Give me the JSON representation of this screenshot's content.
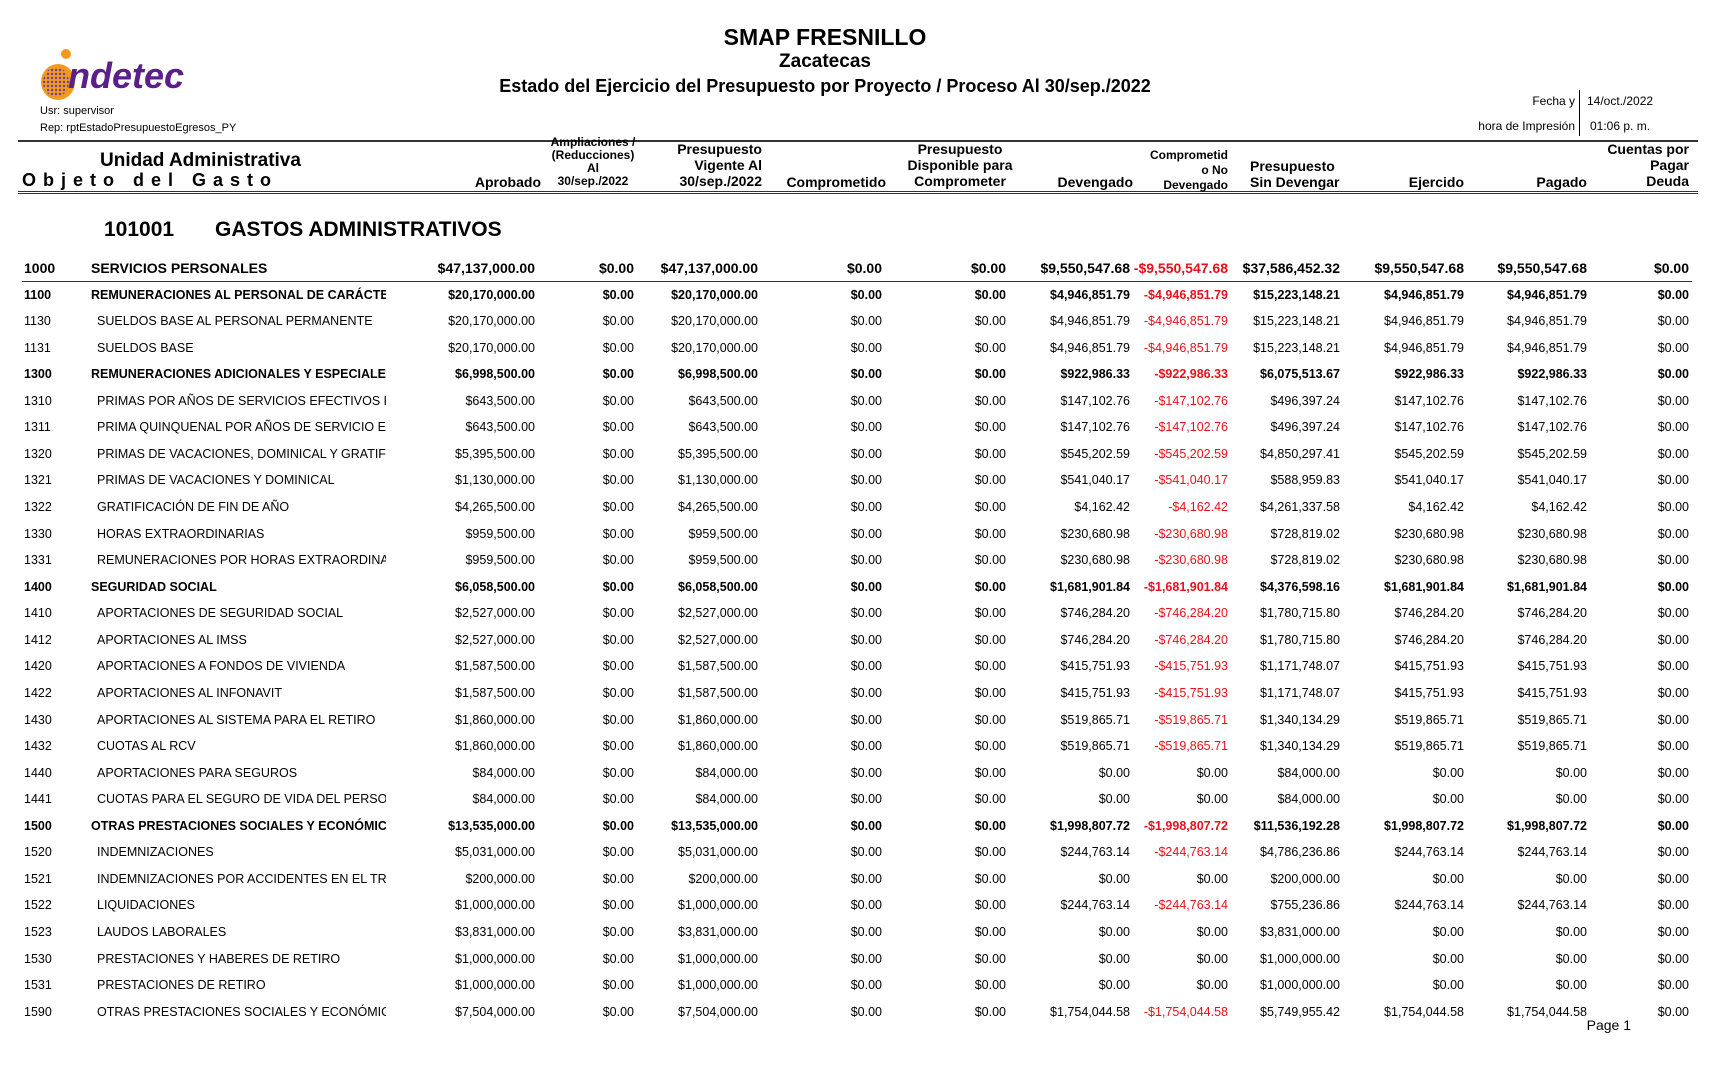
{
  "report": {
    "title": "SMAP FRESNILLO",
    "subtitle": "Zacatecas",
    "heading": "Estado del Ejercicio del Presupuesto por Proyecto / Proceso Al 30/sep./2022",
    "user": "Usr: supervisor",
    "rep": "Rep: rptEstadoPresupuestoEgresos_PY",
    "fecha_label": "Fecha y",
    "fecha_value": "14/oct./2022",
    "hora_label": "hora de Impresión",
    "hora_value": "01:06 p. m.",
    "logo_text": "indetec",
    "page": "Page 1"
  },
  "colors": {
    "negative": "#e8101c",
    "logo_purple": "#5b1f8a",
    "logo_orange": "#f39a1e"
  },
  "columns": {
    "unidad": "Unidad Administrativa",
    "objeto": "O b j e t o   d e l   G a s t o",
    "aprobado": "Aprobado",
    "ampliaciones": [
      "Ampliaciones /",
      "(Reducciones)",
      "Al",
      "30/sep./2022"
    ],
    "vigente": [
      "Presupuesto",
      "Vigente Al",
      "30/sep./2022"
    ],
    "comprometido": "Comprometido",
    "disponible": [
      "Presupuesto",
      "Disponible para",
      "Comprometer"
    ],
    "devengado": "Devengado",
    "no_devengado": [
      "Comprometid",
      "o No",
      "Devengado"
    ],
    "sin_devengar": [
      "Presupuesto",
      "Sin Devengar"
    ],
    "ejercido": "Ejercido",
    "pagado": "Pagado",
    "cuentas": [
      "Cuentas por",
      "Pagar",
      "Deuda"
    ]
  },
  "section": {
    "code": "101001",
    "name": "GASTOS ADMINISTRATIVOS"
  },
  "rows": [
    {
      "code": "1000",
      "name": "SERVICIOS PERSONALES",
      "bold": true,
      "values": [
        "$47,137,000.00",
        "$0.00",
        "$47,137,000.00",
        "$0.00",
        "$0.00",
        "$9,550,547.68",
        "-$9,550,547.68",
        "$37,586,452.32",
        "$9,550,547.68",
        "$9,550,547.68",
        "$0.00"
      ]
    },
    {
      "code": "1100",
      "name": "REMUNERACIONES AL PERSONAL DE CARÁCTER PE",
      "bold": true,
      "values": [
        "$20,170,000.00",
        "$0.00",
        "$20,170,000.00",
        "$0.00",
        "$0.00",
        "$4,946,851.79",
        "-$4,946,851.79",
        "$15,223,148.21",
        "$4,946,851.79",
        "$4,946,851.79",
        "$0.00"
      ]
    },
    {
      "code": "1130",
      "name": "SUELDOS BASE AL PERSONAL PERMANENTE",
      "bold": false,
      "values": [
        "$20,170,000.00",
        "$0.00",
        "$20,170,000.00",
        "$0.00",
        "$0.00",
        "$4,946,851.79",
        "-$4,946,851.79",
        "$15,223,148.21",
        "$4,946,851.79",
        "$4,946,851.79",
        "$0.00"
      ]
    },
    {
      "code": "1131",
      "name": "SUELDOS BASE",
      "bold": false,
      "values": [
        "$20,170,000.00",
        "$0.00",
        "$20,170,000.00",
        "$0.00",
        "$0.00",
        "$4,946,851.79",
        "-$4,946,851.79",
        "$15,223,148.21",
        "$4,946,851.79",
        "$4,946,851.79",
        "$0.00"
      ]
    },
    {
      "code": "1300",
      "name": "REMUNERACIONES ADICIONALES Y ESPECIALES",
      "bold": true,
      "values": [
        "$6,998,500.00",
        "$0.00",
        "$6,998,500.00",
        "$0.00",
        "$0.00",
        "$922,986.33",
        "-$922,986.33",
        "$6,075,513.67",
        "$922,986.33",
        "$922,986.33",
        "$0.00"
      ]
    },
    {
      "code": "1310",
      "name": "PRIMAS POR AÑOS DE SERVICIOS EFECTIVOS PRES",
      "bold": false,
      "values": [
        "$643,500.00",
        "$0.00",
        "$643,500.00",
        "$0.00",
        "$0.00",
        "$147,102.76",
        "-$147,102.76",
        "$496,397.24",
        "$147,102.76",
        "$147,102.76",
        "$0.00"
      ]
    },
    {
      "code": "1311",
      "name": "PRIMA QUINQUENAL POR AÑOS DE SERVICIO EFECT",
      "bold": false,
      "values": [
        "$643,500.00",
        "$0.00",
        "$643,500.00",
        "$0.00",
        "$0.00",
        "$147,102.76",
        "-$147,102.76",
        "$496,397.24",
        "$147,102.76",
        "$147,102.76",
        "$0.00"
      ]
    },
    {
      "code": "1320",
      "name": "PRIMAS DE VACACIONES, DOMINICAL Y GRATIFICAC",
      "bold": false,
      "values": [
        "$5,395,500.00",
        "$0.00",
        "$5,395,500.00",
        "$0.00",
        "$0.00",
        "$545,202.59",
        "-$545,202.59",
        "$4,850,297.41",
        "$545,202.59",
        "$545,202.59",
        "$0.00"
      ]
    },
    {
      "code": "1321",
      "name": "PRIMAS DE VACACIONES Y DOMINICAL",
      "bold": false,
      "values": [
        "$1,130,000.00",
        "$0.00",
        "$1,130,000.00",
        "$0.00",
        "$0.00",
        "$541,040.17",
        "-$541,040.17",
        "$588,959.83",
        "$541,040.17",
        "$541,040.17",
        "$0.00"
      ]
    },
    {
      "code": "1322",
      "name": "GRATIFICACIÓN DE FIN DE AÑO",
      "bold": false,
      "values": [
        "$4,265,500.00",
        "$0.00",
        "$4,265,500.00",
        "$0.00",
        "$0.00",
        "$4,162.42",
        "-$4,162.42",
        "$4,261,337.58",
        "$4,162.42",
        "$4,162.42",
        "$0.00"
      ]
    },
    {
      "code": "1330",
      "name": "HORAS EXTRAORDINARIAS",
      "bold": false,
      "values": [
        "$959,500.00",
        "$0.00",
        "$959,500.00",
        "$0.00",
        "$0.00",
        "$230,680.98",
        "-$230,680.98",
        "$728,819.02",
        "$230,680.98",
        "$230,680.98",
        "$0.00"
      ]
    },
    {
      "code": "1331",
      "name": "REMUNERACIONES POR  HORAS EXTRAORDINARIAS",
      "bold": false,
      "values": [
        "$959,500.00",
        "$0.00",
        "$959,500.00",
        "$0.00",
        "$0.00",
        "$230,680.98",
        "-$230,680.98",
        "$728,819.02",
        "$230,680.98",
        "$230,680.98",
        "$0.00"
      ]
    },
    {
      "code": "1400",
      "name": "SEGURIDAD SOCIAL",
      "bold": true,
      "values": [
        "$6,058,500.00",
        "$0.00",
        "$6,058,500.00",
        "$0.00",
        "$0.00",
        "$1,681,901.84",
        "-$1,681,901.84",
        "$4,376,598.16",
        "$1,681,901.84",
        "$1,681,901.84",
        "$0.00"
      ]
    },
    {
      "code": "1410",
      "name": "APORTACIONES DE SEGURIDAD SOCIAL",
      "bold": false,
      "values": [
        "$2,527,000.00",
        "$0.00",
        "$2,527,000.00",
        "$0.00",
        "$0.00",
        "$746,284.20",
        "-$746,284.20",
        "$1,780,715.80",
        "$746,284.20",
        "$746,284.20",
        "$0.00"
      ]
    },
    {
      "code": "1412",
      "name": "APORTACIONES AL IMSS",
      "bold": false,
      "values": [
        "$2,527,000.00",
        "$0.00",
        "$2,527,000.00",
        "$0.00",
        "$0.00",
        "$746,284.20",
        "-$746,284.20",
        "$1,780,715.80",
        "$746,284.20",
        "$746,284.20",
        "$0.00"
      ]
    },
    {
      "code": "1420",
      "name": "APORTACIONES A FONDOS DE VIVIENDA",
      "bold": false,
      "values": [
        "$1,587,500.00",
        "$0.00",
        "$1,587,500.00",
        "$0.00",
        "$0.00",
        "$415,751.93",
        "-$415,751.93",
        "$1,171,748.07",
        "$415,751.93",
        "$415,751.93",
        "$0.00"
      ]
    },
    {
      "code": "1422",
      "name": "APORTACIONES AL INFONAVIT",
      "bold": false,
      "values": [
        "$1,587,500.00",
        "$0.00",
        "$1,587,500.00",
        "$0.00",
        "$0.00",
        "$415,751.93",
        "-$415,751.93",
        "$1,171,748.07",
        "$415,751.93",
        "$415,751.93",
        "$0.00"
      ]
    },
    {
      "code": "1430",
      "name": "APORTACIONES AL SISTEMA PARA EL RETIRO",
      "bold": false,
      "values": [
        "$1,860,000.00",
        "$0.00",
        "$1,860,000.00",
        "$0.00",
        "$0.00",
        "$519,865.71",
        "-$519,865.71",
        "$1,340,134.29",
        "$519,865.71",
        "$519,865.71",
        "$0.00"
      ]
    },
    {
      "code": "1432",
      "name": "CUOTAS AL RCV",
      "bold": false,
      "values": [
        "$1,860,000.00",
        "$0.00",
        "$1,860,000.00",
        "$0.00",
        "$0.00",
        "$519,865.71",
        "-$519,865.71",
        "$1,340,134.29",
        "$519,865.71",
        "$519,865.71",
        "$0.00"
      ]
    },
    {
      "code": "1440",
      "name": "APORTACIONES PARA SEGUROS",
      "bold": false,
      "values": [
        "$84,000.00",
        "$0.00",
        "$84,000.00",
        "$0.00",
        "$0.00",
        "$0.00",
        "$0.00",
        "$84,000.00",
        "$0.00",
        "$0.00",
        "$0.00"
      ]
    },
    {
      "code": "1441",
      "name": "CUOTAS PARA EL SEGURO DE VIDA DEL PERSONAL",
      "bold": false,
      "values": [
        "$84,000.00",
        "$0.00",
        "$84,000.00",
        "$0.00",
        "$0.00",
        "$0.00",
        "$0.00",
        "$84,000.00",
        "$0.00",
        "$0.00",
        "$0.00"
      ]
    },
    {
      "code": "1500",
      "name": "OTRAS PRESTACIONES SOCIALES Y ECONÓMICAS",
      "bold": true,
      "values": [
        "$13,535,000.00",
        "$0.00",
        "$13,535,000.00",
        "$0.00",
        "$0.00",
        "$1,998,807.72",
        "-$1,998,807.72",
        "$11,536,192.28",
        "$1,998,807.72",
        "$1,998,807.72",
        "$0.00"
      ]
    },
    {
      "code": "1520",
      "name": "INDEMNIZACIONES",
      "bold": false,
      "values": [
        "$5,031,000.00",
        "$0.00",
        "$5,031,000.00",
        "$0.00",
        "$0.00",
        "$244,763.14",
        "-$244,763.14",
        "$4,786,236.86",
        "$244,763.14",
        "$244,763.14",
        "$0.00"
      ]
    },
    {
      "code": "1521",
      "name": "INDEMNIZACIONES POR ACCIDENTES EN EL TRABA.",
      "bold": false,
      "values": [
        "$200,000.00",
        "$0.00",
        "$200,000.00",
        "$0.00",
        "$0.00",
        "$0.00",
        "$0.00",
        "$200,000.00",
        "$0.00",
        "$0.00",
        "$0.00"
      ]
    },
    {
      "code": "1522",
      "name": "LIQUIDACIONES",
      "bold": false,
      "values": [
        "$1,000,000.00",
        "$0.00",
        "$1,000,000.00",
        "$0.00",
        "$0.00",
        "$244,763.14",
        "-$244,763.14",
        "$755,236.86",
        "$244,763.14",
        "$244,763.14",
        "$0.00"
      ]
    },
    {
      "code": "1523",
      "name": "LAUDOS LABORALES",
      "bold": false,
      "values": [
        "$3,831,000.00",
        "$0.00",
        "$3,831,000.00",
        "$0.00",
        "$0.00",
        "$0.00",
        "$0.00",
        "$3,831,000.00",
        "$0.00",
        "$0.00",
        "$0.00"
      ]
    },
    {
      "code": "1530",
      "name": "PRESTACIONES Y HABERES DE RETIRO",
      "bold": false,
      "values": [
        "$1,000,000.00",
        "$0.00",
        "$1,000,000.00",
        "$0.00",
        "$0.00",
        "$0.00",
        "$0.00",
        "$1,000,000.00",
        "$0.00",
        "$0.00",
        "$0.00"
      ]
    },
    {
      "code": "1531",
      "name": "PRESTACIONES DE RETIRO",
      "bold": false,
      "values": [
        "$1,000,000.00",
        "$0.00",
        "$1,000,000.00",
        "$0.00",
        "$0.00",
        "$0.00",
        "$0.00",
        "$1,000,000.00",
        "$0.00",
        "$0.00",
        "$0.00"
      ]
    },
    {
      "code": "1590",
      "name": "OTRAS PRESTACIONES SOCIALES Y ECONÓMICAS",
      "bold": false,
      "values": [
        "$7,504,000.00",
        "$0.00",
        "$7,504,000.00",
        "$0.00",
        "$0.00",
        "$1,754,044.58",
        "-$1,754,044.58",
        "$5,749,955.42",
        "$1,754,044.58",
        "$1,754,044.58",
        "$0.00"
      ]
    }
  ]
}
